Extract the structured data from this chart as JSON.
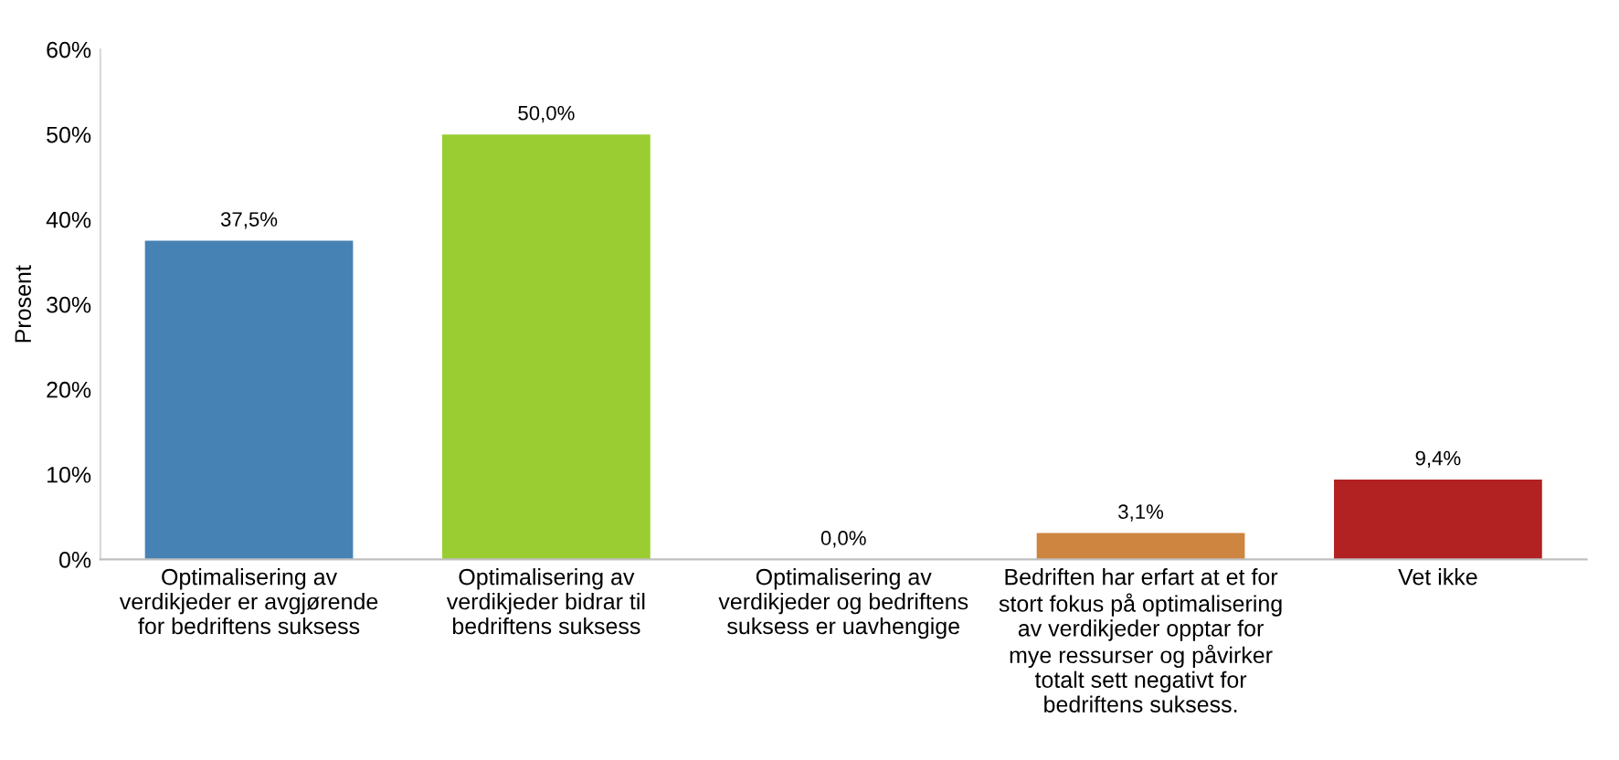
{
  "chart_data": {
    "type": "bar",
    "ylabel": "Prosent",
    "categories": [
      "Optimalisering av\nverdikjeder er avgjørende\nfor bedriftens suksess",
      "Optimalisering av\nverdikjeder bidrar til\nbedriftens suksess",
      "Optimalisering av\nverdikjeder og bedriftens\nsuksess er uavhengige",
      "Bedriften har erfart at et for\nstort fokus på optimalisering\nav verdikjeder opptar for\nmye ressurser og påvirker\ntotalt sett negativt for\nbedriftens suksess.",
      "Vet ikke"
    ],
    "values": [
      37.5,
      50.0,
      0.0,
      3.1,
      9.4
    ],
    "value_labels": [
      "37,5%",
      "50,0%",
      "0,0%",
      "3,1%",
      "9,4%"
    ],
    "colors": [
      "#4682b4",
      "#9acd32",
      "#7f7f7f",
      "#cd853f",
      "#b22222"
    ],
    "ylim": [
      0,
      60
    ],
    "yticks": [
      {
        "value": 0,
        "label": "0%"
      },
      {
        "value": 10,
        "label": "10%"
      },
      {
        "value": 20,
        "label": "20%"
      },
      {
        "value": 30,
        "label": "30%"
      },
      {
        "value": 40,
        "label": "40%"
      },
      {
        "value": 50,
        "label": "50%"
      },
      {
        "value": 60,
        "label": "60%"
      }
    ],
    "grid": false,
    "legend": false
  }
}
